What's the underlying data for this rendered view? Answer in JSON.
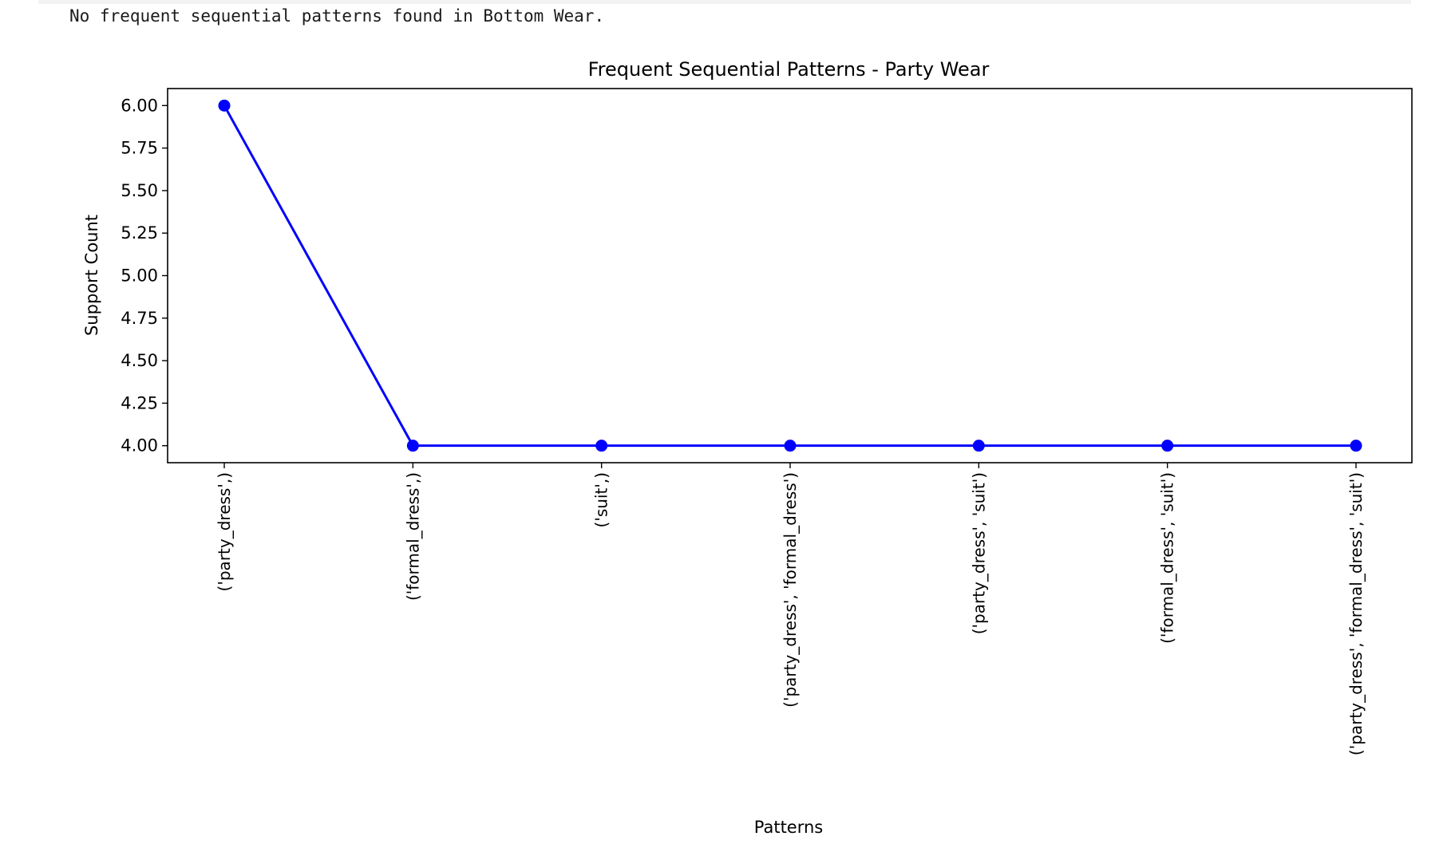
{
  "output": {
    "message": "No frequent sequential patterns found in Bottom Wear."
  },
  "chart_data": {
    "type": "line",
    "title": "Frequent Sequential Patterns - Party Wear",
    "xlabel": "Patterns",
    "ylabel": "Support Count",
    "categories": [
      "('party_dress',)",
      "('formal_dress',)",
      "('suit',)",
      "('party_dress', 'formal_dress')",
      "('party_dress', 'suit')",
      "('formal_dress', 'suit')",
      "('party_dress', 'formal_dress', 'suit')"
    ],
    "series": [
      {
        "values": [
          6,
          4,
          4,
          4,
          4,
          4,
          4
        ],
        "color": "#0000ff",
        "marker": "circle"
      }
    ],
    "ylim": [
      3.9,
      6.1
    ],
    "yticks": [
      "4.00",
      "4.25",
      "4.50",
      "4.75",
      "5.00",
      "5.25",
      "5.50",
      "5.75",
      "6.00"
    ],
    "grid": false,
    "legend": "none"
  }
}
